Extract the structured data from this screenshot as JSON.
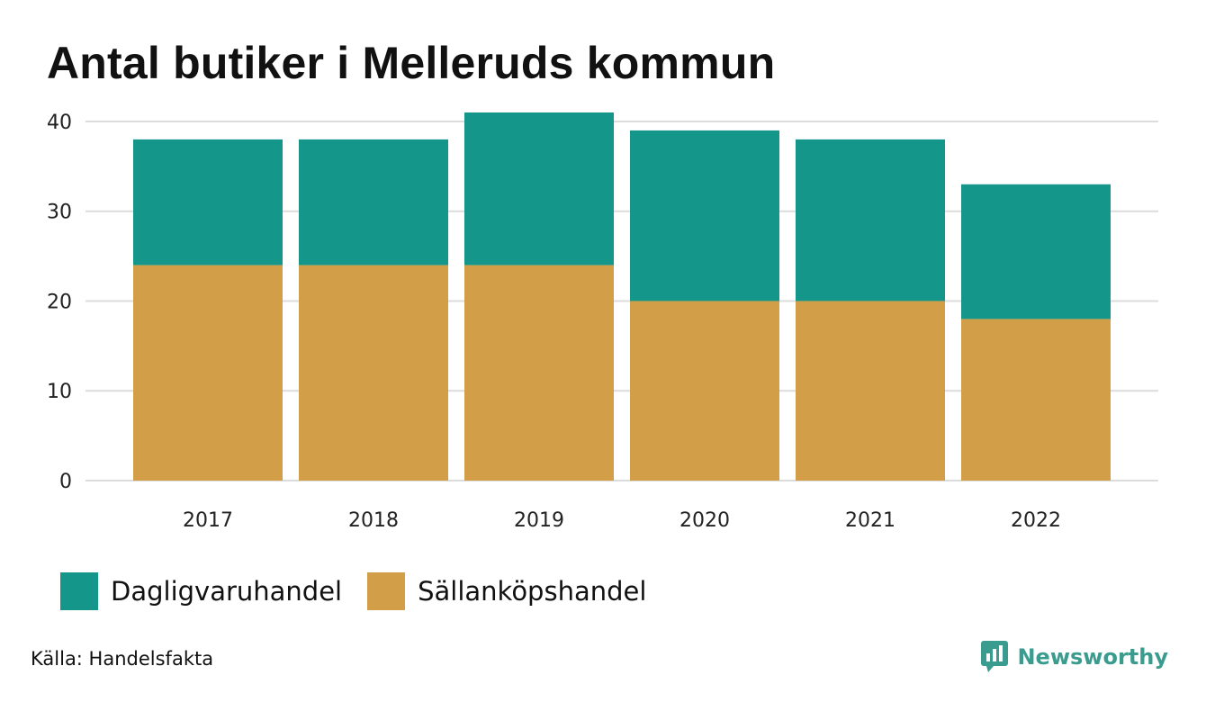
{
  "title": "Antal butiker i Melleruds kommun",
  "source": "Källa: Handelsfakta",
  "brand": {
    "name": "Newsworthy",
    "icon": "newsworthy-logo-icon",
    "color": "#3a9c8e"
  },
  "chart_data": {
    "type": "bar",
    "stacked": true,
    "title": "Antal butiker i Melleruds kommun",
    "categories": [
      "2017",
      "2018",
      "2019",
      "2020",
      "2021",
      "2022"
    ],
    "series": [
      {
        "name": "Sällanköpshandel",
        "color": "#d29e48",
        "values": [
          24,
          24,
          24,
          20,
          20,
          18
        ]
      },
      {
        "name": "Dagligvaruhandel",
        "color": "#14968a",
        "values": [
          14,
          14,
          17,
          19,
          18,
          15
        ]
      }
    ],
    "ylim": [
      0,
      42
    ],
    "yticks": [
      0,
      10,
      20,
      30,
      40
    ],
    "grid": true,
    "legend_position": "bottom-left",
    "xlabel": "",
    "ylabel": ""
  },
  "legend": [
    {
      "label": "Dagligvaruhandel",
      "color": "#14968a"
    },
    {
      "label": "Sällanköpshandel",
      "color": "#d29e48"
    }
  ]
}
